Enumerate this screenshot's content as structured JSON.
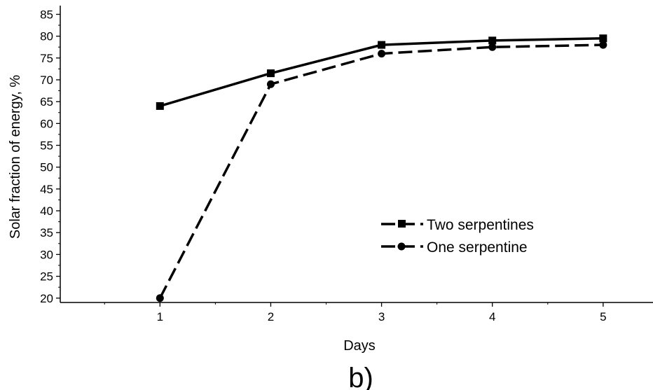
{
  "chart_data": {
    "type": "line",
    "x": [
      1,
      2,
      3,
      4,
      5
    ],
    "x_ticks": [
      "1",
      "2",
      "3",
      "4",
      "5"
    ],
    "y_ticks": [
      "20",
      "25",
      "30",
      "35",
      "40",
      "45",
      "50",
      "55",
      "60",
      "65",
      "70",
      "75",
      "80",
      "85"
    ],
    "xlim": [
      0.1,
      5.45
    ],
    "ylim": [
      19,
      87
    ],
    "xlabel": "Days",
    "ylabel": "Solar fraction of energy, %",
    "panel_label": "b)",
    "legend_position": "center-right",
    "series": [
      {
        "name": "Two serpentines",
        "marker": "square",
        "line_style": "solid",
        "values": [
          64,
          71.5,
          78,
          79,
          79.5
        ]
      },
      {
        "name": "One serpentine",
        "marker": "circle",
        "line_style": "dashed",
        "values": [
          20,
          69,
          76,
          77.5,
          78
        ]
      }
    ]
  }
}
